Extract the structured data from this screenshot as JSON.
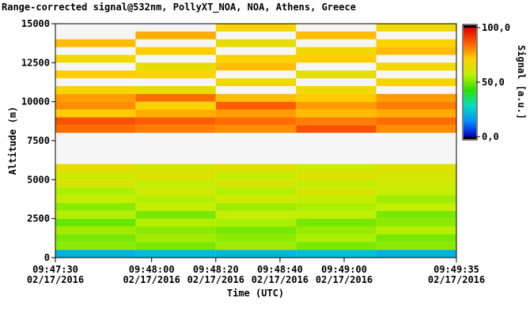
{
  "chart_data": {
    "type": "heatmap",
    "title": "Range-corrected signal@532nm, PollyXT_NOA, NOA, Athens, Greece",
    "xlabel": "Time (UTC)",
    "ylabel": "Altitude (m)",
    "colorbar_label": "Signal [a.u.]",
    "x": [
      "2016-02-17T09:47:30",
      "2016-02-17T09:47:55",
      "2016-02-17T09:48:20",
      "2016-02-17T09:48:45",
      "2016-02-17T09:49:10"
    ],
    "xlim": [
      "2016-02-17T09:47:30",
      "2016-02-17T09:49:35"
    ],
    "xticks": [
      {
        "value": "2016-02-17T09:47:30",
        "label": [
          "09:47:30",
          "02/17/2016"
        ]
      },
      {
        "value": "2016-02-17T09:48:00",
        "label": [
          "09:48:00",
          "02/17/2016"
        ]
      },
      {
        "value": "2016-02-17T09:48:20",
        "label": [
          "09:48:20",
          "02/17/2016"
        ]
      },
      {
        "value": "2016-02-17T09:48:40",
        "label": [
          "09:48:40",
          "02/17/2016"
        ]
      },
      {
        "value": "2016-02-17T09:49:00",
        "label": [
          "09:49:00",
          "02/17/2016"
        ]
      },
      {
        "value": "2016-02-17T09:49:35",
        "label": [
          "09:49:35",
          "02/17/2016"
        ]
      }
    ],
    "y": [
      0,
      500,
      1000,
      1500,
      2000,
      2500,
      3000,
      3500,
      4000,
      4500,
      5000,
      5500,
      6000,
      6500,
      7000,
      7500,
      8000,
      8500,
      9000,
      9500,
      10000,
      10500,
      11000,
      11500,
      12000,
      12500,
      13000,
      13500,
      14000,
      14500,
      15000
    ],
    "ylim": [
      0,
      15000
    ],
    "yticks": [
      0,
      2500,
      5000,
      7500,
      10000,
      12500,
      15000
    ],
    "z": [
      [
        20,
        52,
        50,
        54,
        48,
        56,
        52,
        58,
        55,
        62,
        60,
        66,
        null,
        null,
        null,
        null,
        84,
        88,
        72,
        80,
        78,
        70,
        null,
        72,
        null,
        68,
        null,
        74,
        null,
        null
      ],
      [
        22,
        50,
        54,
        52,
        56,
        50,
        58,
        56,
        60,
        58,
        64,
        62,
        null,
        null,
        null,
        null,
        82,
        86,
        76,
        70,
        84,
        66,
        null,
        70,
        66,
        null,
        72,
        null,
        76,
        null
      ],
      [
        21,
        54,
        52,
        50,
        55,
        58,
        54,
        60,
        56,
        62,
        58,
        64,
        null,
        null,
        null,
        null,
        80,
        84,
        78,
        86,
        74,
        null,
        68,
        null,
        74,
        70,
        null,
        66,
        null,
        70
      ],
      [
        23,
        50,
        55,
        53,
        50,
        57,
        55,
        58,
        62,
        58,
        64,
        60,
        null,
        null,
        null,
        null,
        88,
        82,
        74,
        78,
        72,
        68,
        null,
        66,
        null,
        72,
        68,
        null,
        74,
        null
      ],
      [
        20,
        52,
        50,
        56,
        52,
        50,
        58,
        54,
        58,
        60,
        62,
        64,
        null,
        null,
        null,
        null,
        80,
        84,
        76,
        82,
        78,
        null,
        70,
        null,
        68,
        null,
        74,
        70,
        null,
        68
      ]
    ],
    "zlim": [
      0,
      100
    ],
    "zticks": [
      {
        "value": 0,
        "label": "0,0"
      },
      {
        "value": 50,
        "label": "50,0"
      },
      {
        "value": 100,
        "label": "100,0"
      }
    ],
    "colormap": [
      "#0000c8",
      "#0090ff",
      "#00e0c0",
      "#30e000",
      "#c0f000",
      "#ffd000",
      "#ff6000",
      "#e00000"
    ],
    "missing_color": "#f6f6f6"
  }
}
